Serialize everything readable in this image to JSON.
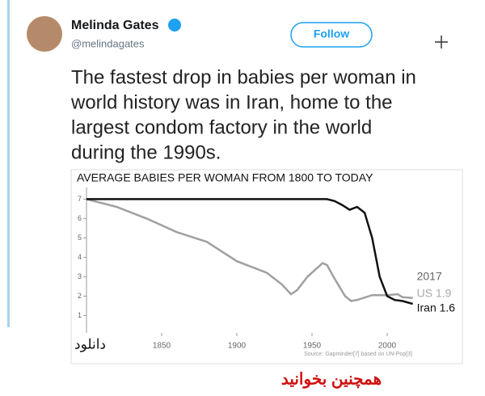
{
  "tweet": {
    "name": "Melinda Gates",
    "handle": "@melindagates",
    "button": "Follow",
    "text_lines": [
      "The fastest drop in babies per woman in",
      "world history was in Iran, home to the",
      "largest condom factory in the world",
      "during the 1990s."
    ]
  },
  "overlay": {
    "download": "دانلود",
    "read_more": "همچنین بخوانید"
  },
  "chart_data": {
    "type": "line",
    "title": "AVERAGE BABIES PER WOMAN FROM 1800 TO TODAY",
    "source": "Source: Gapminder[7] based on UN-Pop[3]",
    "annotation": "2017",
    "xlim": [
      1800,
      2050
    ],
    "xticks": [
      1850,
      1900,
      1950,
      2000
    ],
    "ylim": [
      0.1,
      7.6
    ],
    "yticks": [
      1,
      2,
      3,
      4,
      5,
      6,
      7
    ],
    "series": [
      {
        "name": "US",
        "color": "#a0a0a0",
        "x": [
          1800,
          1820,
          1840,
          1860,
          1880,
          1900,
          1920,
          1930,
          1936,
          1940,
          1947,
          1957,
          1960,
          1965,
          1972,
          1976,
          1980,
          1990,
          2000,
          2007,
          2010,
          2017
        ],
        "values": [
          7.0,
          6.6,
          6.0,
          5.3,
          4.8,
          3.8,
          3.2,
          2.6,
          2.1,
          2.3,
          3.0,
          3.7,
          3.6,
          2.9,
          2.0,
          1.75,
          1.8,
          2.05,
          2.05,
          2.1,
          1.95,
          1.9
        ],
        "value_labels": [
          null,
          null,
          null,
          null,
          null,
          null,
          null,
          null,
          null,
          null,
          null,
          null,
          null,
          null,
          null,
          null,
          null,
          null,
          null,
          null,
          null,
          "US 1.9"
        ]
      },
      {
        "name": "Iran",
        "color": "#111111",
        "x": [
          1800,
          1900,
          1960,
          1965,
          1970,
          1975,
          1980,
          1985,
          1990,
          1995,
          2000,
          2005,
          2010,
          2017
        ],
        "values": [
          7.0,
          7.0,
          7.0,
          6.9,
          6.7,
          6.45,
          6.6,
          6.3,
          5.0,
          3.0,
          2.0,
          1.8,
          1.75,
          1.6
        ],
        "value_labels": [
          null,
          null,
          null,
          null,
          null,
          null,
          null,
          null,
          null,
          null,
          null,
          null,
          null,
          "Iran 1.6"
        ]
      }
    ]
  }
}
